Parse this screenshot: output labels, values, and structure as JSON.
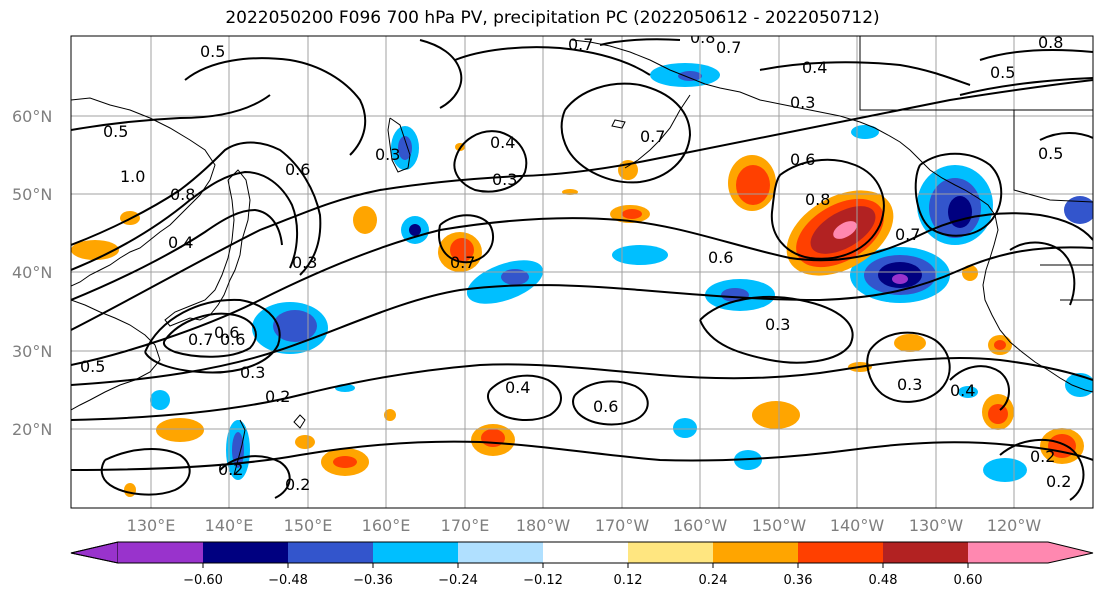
{
  "title": "2022050200 F096 700 hPa PV, precipitation PC (2022050612 - 2022050712)",
  "latitude_labels": [
    "60°N",
    "50°N",
    "40°N",
    "30°N",
    "20°N"
  ],
  "longitude_labels": [
    "130°E",
    "140°E",
    "150°E",
    "160°E",
    "170°E",
    "180°W",
    "170°W",
    "160°W",
    "150°W",
    "140°W",
    "130°W",
    "120°W"
  ],
  "colorbar": {
    "tick_labels": [
      "−0.60",
      "−0.48",
      "−0.36",
      "−0.24",
      "−0.12",
      "0.12",
      "0.24",
      "0.36",
      "0.48",
      "0.60"
    ],
    "colors": [
      "#9933cc",
      "#000080",
      "#3355cc",
      "#00bfff",
      "#b0e0ff",
      "#ffffff",
      "#ffe680",
      "#ffa500",
      "#ff4000",
      "#b22222",
      "#ff88b0"
    ]
  },
  "pv_contour_labels": [
    "0.5",
    "0.5",
    "1.0",
    "0.8",
    "0.4",
    "0.6",
    "0.3",
    "0.7",
    "0.6",
    "0.5",
    "0.3",
    "0.2",
    "0.2",
    "0.2",
    "0.3",
    "0.4",
    "0.3",
    "0.4",
    "0.7",
    "0.6",
    "0.8",
    "0.6",
    "0.7",
    "0.3",
    "0.3",
    "0.4",
    "0.2",
    "0.2",
    "0.7",
    "0.6",
    "0.4",
    "0.3",
    "0.8",
    "0.7",
    "0.7",
    "0.8",
    "0.5",
    "0.5",
    "0.6"
  ]
}
